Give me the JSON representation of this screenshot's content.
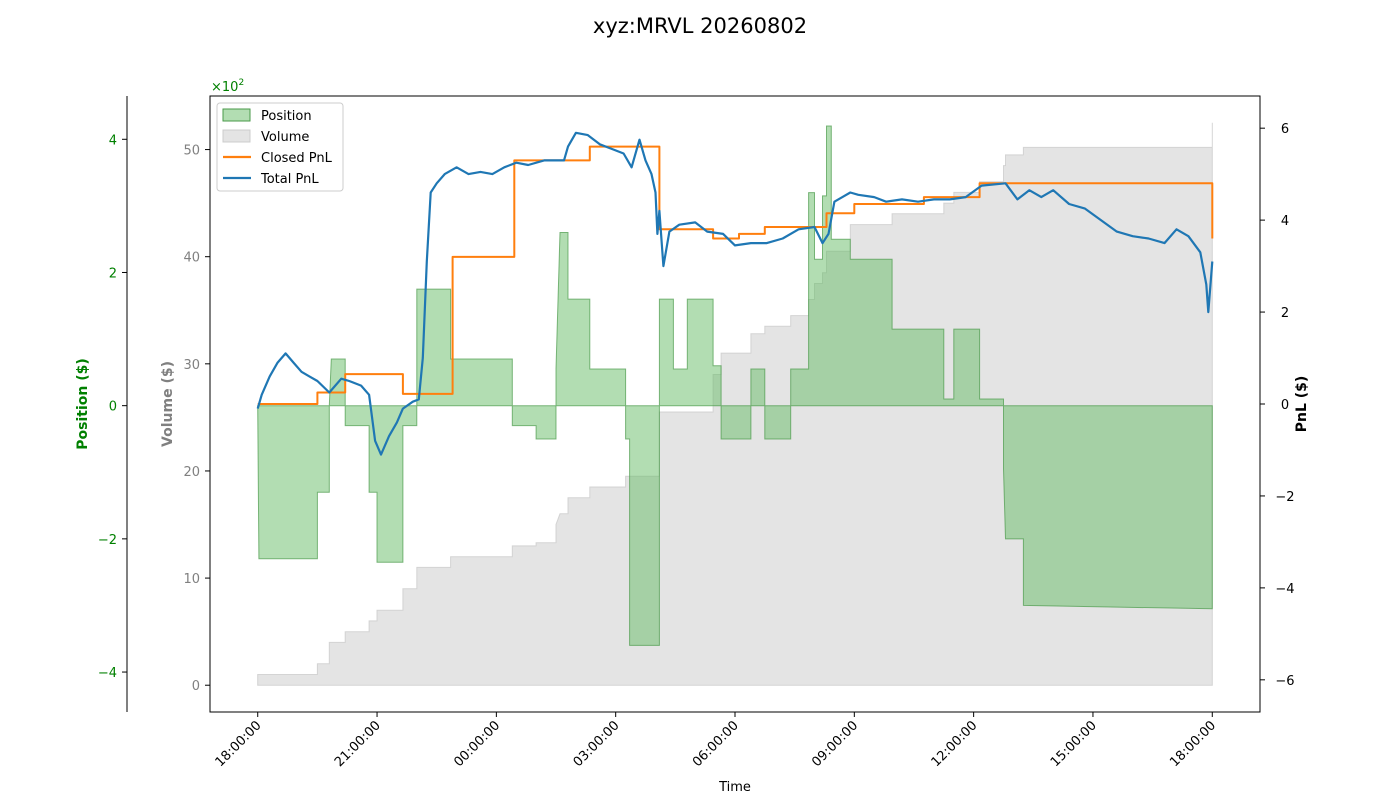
{
  "chart_data": {
    "type": "line",
    "title": "xyz:MRVL 20260802",
    "xlabel": "Time",
    "x_ticks": [
      "18:00:00",
      "21:00:00",
      "00:00:00",
      "03:00:00",
      "06:00:00",
      "09:00:00",
      "12:00:00",
      "15:00:00",
      "18:00:00"
    ],
    "x_range_hours": [
      -1.2,
      25.2
    ],
    "axes": {
      "position": {
        "label": "Position ($)",
        "ylim": [
          -4.6,
          4.65
        ],
        "ticks": [
          -4,
          -2,
          0,
          2,
          4
        ],
        "tick_labels": [
          "−4",
          "−2",
          "0",
          "2",
          "4"
        ],
        "color": "#008000",
        "multiplier": "×10",
        "multiplier_exp": "2"
      },
      "volume": {
        "label": "Volume ($)",
        "ylim": [
          -2.5,
          55
        ],
        "ticks": [
          0,
          10,
          20,
          30,
          40,
          50
        ],
        "color": "#808080"
      },
      "pnl": {
        "label": "PnL ($)",
        "ylim": [
          -6.7,
          6.7
        ],
        "ticks": [
          -6,
          -4,
          -2,
          0,
          2,
          4,
          6
        ],
        "tick_labels": [
          "−6",
          "−4",
          "−2",
          "0",
          "2",
          "4",
          "6"
        ],
        "color": "#000000"
      }
    },
    "legend": {
      "placement": "top-left",
      "entries": [
        {
          "label": "Position",
          "kind": "patch",
          "color": "#66bb66"
        },
        {
          "label": "Volume",
          "kind": "patch",
          "color": "#d9d9d9"
        },
        {
          "label": "Closed PnL",
          "kind": "line",
          "color": "#ff7f0e"
        },
        {
          "label": "Total PnL",
          "kind": "line",
          "color": "#1f77b4"
        }
      ]
    },
    "series": [
      {
        "name": "Position",
        "axis": "position",
        "color": "#66bb66",
        "type": "step-area",
        "points": [
          [
            0,
            0
          ],
          [
            0.03,
            -2.3
          ],
          [
            1.5,
            -2.3
          ],
          [
            1.5,
            -1.3
          ],
          [
            1.8,
            -1.3
          ],
          [
            1.8,
            0
          ],
          [
            1.85,
            0.7
          ],
          [
            2.2,
            0.7
          ],
          [
            2.2,
            -0.3
          ],
          [
            2.8,
            -0.3
          ],
          [
            2.8,
            -1.3
          ],
          [
            3.0,
            -1.3
          ],
          [
            3.0,
            -2.35
          ],
          [
            3.65,
            -2.35
          ],
          [
            3.65,
            -0.3
          ],
          [
            4.0,
            -0.3
          ],
          [
            4.0,
            1.75
          ],
          [
            4.85,
            1.75
          ],
          [
            4.85,
            0.7
          ],
          [
            6.4,
            0.7
          ],
          [
            6.4,
            -0.3
          ],
          [
            7.0,
            -0.3
          ],
          [
            7.0,
            -0.5
          ],
          [
            7.5,
            -0.5
          ],
          [
            7.5,
            0.55
          ],
          [
            7.6,
            2.6
          ],
          [
            7.8,
            2.6
          ],
          [
            7.8,
            1.6
          ],
          [
            8.35,
            1.6
          ],
          [
            8.35,
            0.55
          ],
          [
            9.25,
            0.55
          ],
          [
            9.25,
            -0.5
          ],
          [
            9.35,
            -0.5
          ],
          [
            9.35,
            -3.6
          ],
          [
            10.1,
            -3.6
          ],
          [
            10.1,
            -2.9
          ],
          [
            10.1,
            1.6
          ],
          [
            10.45,
            1.6
          ],
          [
            10.45,
            0.55
          ],
          [
            10.8,
            0.55
          ],
          [
            10.8,
            1.6
          ],
          [
            11.45,
            1.6
          ],
          [
            11.45,
            0.6
          ],
          [
            11.65,
            0.6
          ],
          [
            11.65,
            -0.5
          ],
          [
            12.4,
            -0.5
          ],
          [
            12.4,
            0.55
          ],
          [
            12.75,
            0.55
          ],
          [
            12.75,
            -0.5
          ],
          [
            13.4,
            -0.5
          ],
          [
            13.4,
            0.55
          ],
          [
            13.85,
            0.55
          ],
          [
            13.85,
            3.2
          ],
          [
            14.0,
            3.2
          ],
          [
            14.0,
            2.2
          ],
          [
            14.2,
            2.2
          ],
          [
            14.2,
            3.15
          ],
          [
            14.3,
            3.15
          ],
          [
            14.3,
            4.2
          ],
          [
            14.42,
            4.2
          ],
          [
            14.42,
            2.5
          ],
          [
            14.9,
            2.5
          ],
          [
            14.9,
            2.2
          ],
          [
            15.95,
            2.2
          ],
          [
            15.95,
            1.15
          ],
          [
            17.25,
            1.15
          ],
          [
            17.25,
            0.1
          ],
          [
            17.5,
            0.1
          ],
          [
            17.5,
            1.15
          ],
          [
            18.15,
            1.15
          ],
          [
            18.15,
            0.1
          ],
          [
            18.75,
            0.1
          ],
          [
            18.75,
            -0.95
          ],
          [
            18.8,
            -2.0
          ],
          [
            19.25,
            -2.0
          ],
          [
            19.25,
            -3.0
          ],
          [
            24,
            -3.05
          ],
          [
            24,
            0
          ]
        ]
      },
      {
        "name": "Volume",
        "axis": "volume",
        "color": "#d9d9d9",
        "type": "step-area",
        "points": [
          [
            0,
            1
          ],
          [
            1.5,
            1
          ],
          [
            1.5,
            2
          ],
          [
            1.8,
            2
          ],
          [
            1.8,
            4
          ],
          [
            2.2,
            4
          ],
          [
            2.2,
            5
          ],
          [
            2.8,
            5
          ],
          [
            2.8,
            6
          ],
          [
            3.0,
            6
          ],
          [
            3.0,
            7
          ],
          [
            3.65,
            7
          ],
          [
            3.65,
            9
          ],
          [
            4.0,
            9
          ],
          [
            4.0,
            11
          ],
          [
            4.85,
            11
          ],
          [
            4.85,
            12
          ],
          [
            6.4,
            12
          ],
          [
            6.4,
            13
          ],
          [
            7.0,
            13
          ],
          [
            7.0,
            13.3
          ],
          [
            7.5,
            13.3
          ],
          [
            7.5,
            15
          ],
          [
            7.6,
            16
          ],
          [
            7.8,
            16
          ],
          [
            7.8,
            17.5
          ],
          [
            8.35,
            17.5
          ],
          [
            8.35,
            18.5
          ],
          [
            9.25,
            18.5
          ],
          [
            9.25,
            19.5
          ],
          [
            10.1,
            19.5
          ],
          [
            10.1,
            25.5
          ],
          [
            11.45,
            25.5
          ],
          [
            11.45,
            29
          ],
          [
            11.65,
            29
          ],
          [
            11.65,
            31
          ],
          [
            12.4,
            31
          ],
          [
            12.4,
            32.8
          ],
          [
            12.75,
            32.8
          ],
          [
            12.75,
            33.5
          ],
          [
            13.4,
            33.5
          ],
          [
            13.4,
            34.5
          ],
          [
            13.85,
            34.5
          ],
          [
            13.85,
            36
          ],
          [
            14.0,
            36
          ],
          [
            14.0,
            37.5
          ],
          [
            14.2,
            37.5
          ],
          [
            14.2,
            38.5
          ],
          [
            14.3,
            38.5
          ],
          [
            14.3,
            40.5
          ],
          [
            14.9,
            40.5
          ],
          [
            14.9,
            43
          ],
          [
            15.95,
            43
          ],
          [
            15.95,
            44
          ],
          [
            17.25,
            44
          ],
          [
            17.25,
            45
          ],
          [
            17.5,
            45
          ],
          [
            17.5,
            46
          ],
          [
            18.15,
            46
          ],
          [
            18.15,
            47
          ],
          [
            18.75,
            47
          ],
          [
            18.75,
            48.5
          ],
          [
            18.8,
            48.5
          ],
          [
            18.8,
            49.5
          ],
          [
            19.25,
            49.5
          ],
          [
            19.25,
            50.2
          ],
          [
            24,
            50.2
          ],
          [
            24,
            52.5
          ],
          [
            24,
            0
          ]
        ]
      },
      {
        "name": "Closed PnL",
        "axis": "pnl",
        "color": "#ff7f0e",
        "type": "step-line",
        "points": [
          [
            0,
            0
          ],
          [
            1.5,
            0
          ],
          [
            1.5,
            0.25
          ],
          [
            2.2,
            0.25
          ],
          [
            2.2,
            0.65
          ],
          [
            3.65,
            0.65
          ],
          [
            3.65,
            0.22
          ],
          [
            4.9,
            0.22
          ],
          [
            4.9,
            3.2
          ],
          [
            6.45,
            3.2
          ],
          [
            6.45,
            5.3
          ],
          [
            8.35,
            5.3
          ],
          [
            8.35,
            5.6
          ],
          [
            10.1,
            5.6
          ],
          [
            10.1,
            3.8
          ],
          [
            11.45,
            3.8
          ],
          [
            11.45,
            3.6
          ],
          [
            12.1,
            3.6
          ],
          [
            12.1,
            3.7
          ],
          [
            12.75,
            3.7
          ],
          [
            12.75,
            3.85
          ],
          [
            14.3,
            3.85
          ],
          [
            14.3,
            4.15
          ],
          [
            15.0,
            4.15
          ],
          [
            15.0,
            4.35
          ],
          [
            16.75,
            4.35
          ],
          [
            16.75,
            4.5
          ],
          [
            18.15,
            4.5
          ],
          [
            18.15,
            4.8
          ],
          [
            24,
            4.8
          ],
          [
            24,
            3.6
          ]
        ]
      },
      {
        "name": "Total PnL",
        "axis": "pnl",
        "color": "#1f77b4",
        "type": "line",
        "points": [
          [
            0,
            -0.1
          ],
          [
            0.1,
            0.2
          ],
          [
            0.3,
            0.6
          ],
          [
            0.5,
            0.9
          ],
          [
            0.7,
            1.1
          ],
          [
            0.9,
            0.9
          ],
          [
            1.1,
            0.7
          ],
          [
            1.3,
            0.6
          ],
          [
            1.5,
            0.5
          ],
          [
            1.8,
            0.25
          ],
          [
            2.1,
            0.55
          ],
          [
            2.3,
            0.5
          ],
          [
            2.6,
            0.4
          ],
          [
            2.8,
            0.2
          ],
          [
            2.95,
            -0.8
          ],
          [
            3.1,
            -1.1
          ],
          [
            3.3,
            -0.7
          ],
          [
            3.5,
            -0.4
          ],
          [
            3.65,
            -0.1
          ],
          [
            3.9,
            0.05
          ],
          [
            4.05,
            0.1
          ],
          [
            4.15,
            1.0
          ],
          [
            4.25,
            3.1
          ],
          [
            4.35,
            4.6
          ],
          [
            4.5,
            4.8
          ],
          [
            4.7,
            5.0
          ],
          [
            5.0,
            5.15
          ],
          [
            5.3,
            5.0
          ],
          [
            5.6,
            5.05
          ],
          [
            5.9,
            5.0
          ],
          [
            6.2,
            5.15
          ],
          [
            6.5,
            5.25
          ],
          [
            6.8,
            5.2
          ],
          [
            7.2,
            5.3
          ],
          [
            7.5,
            5.3
          ],
          [
            7.7,
            5.3
          ],
          [
            7.8,
            5.6
          ],
          [
            8.0,
            5.9
          ],
          [
            8.3,
            5.85
          ],
          [
            8.6,
            5.65
          ],
          [
            8.9,
            5.55
          ],
          [
            9.2,
            5.45
          ],
          [
            9.4,
            5.15
          ],
          [
            9.6,
            5.75
          ],
          [
            9.75,
            5.3
          ],
          [
            9.9,
            5.0
          ],
          [
            10.0,
            4.6
          ],
          [
            10.05,
            3.7
          ],
          [
            10.1,
            4.2
          ],
          [
            10.2,
            3.0
          ],
          [
            10.35,
            3.75
          ],
          [
            10.6,
            3.9
          ],
          [
            11.0,
            3.95
          ],
          [
            11.3,
            3.75
          ],
          [
            11.7,
            3.7
          ],
          [
            12.0,
            3.45
          ],
          [
            12.4,
            3.5
          ],
          [
            12.8,
            3.5
          ],
          [
            13.2,
            3.6
          ],
          [
            13.6,
            3.8
          ],
          [
            14.0,
            3.85
          ],
          [
            14.2,
            3.5
          ],
          [
            14.35,
            3.7
          ],
          [
            14.5,
            4.4
          ],
          [
            14.7,
            4.5
          ],
          [
            14.9,
            4.6
          ],
          [
            15.1,
            4.55
          ],
          [
            15.5,
            4.5
          ],
          [
            15.8,
            4.4
          ],
          [
            16.2,
            4.45
          ],
          [
            16.6,
            4.4
          ],
          [
            17.0,
            4.45
          ],
          [
            17.4,
            4.45
          ],
          [
            17.8,
            4.5
          ],
          [
            18.2,
            4.75
          ],
          [
            18.8,
            4.8
          ],
          [
            19.1,
            4.45
          ],
          [
            19.4,
            4.65
          ],
          [
            19.7,
            4.5
          ],
          [
            20.0,
            4.65
          ],
          [
            20.4,
            4.35
          ],
          [
            20.8,
            4.25
          ],
          [
            21.2,
            4.0
          ],
          [
            21.6,
            3.75
          ],
          [
            22.0,
            3.65
          ],
          [
            22.4,
            3.6
          ],
          [
            22.8,
            3.5
          ],
          [
            23.1,
            3.8
          ],
          [
            23.4,
            3.65
          ],
          [
            23.7,
            3.3
          ],
          [
            23.85,
            2.6
          ],
          [
            23.9,
            2.0
          ],
          [
            24.0,
            3.1
          ]
        ]
      }
    ]
  }
}
